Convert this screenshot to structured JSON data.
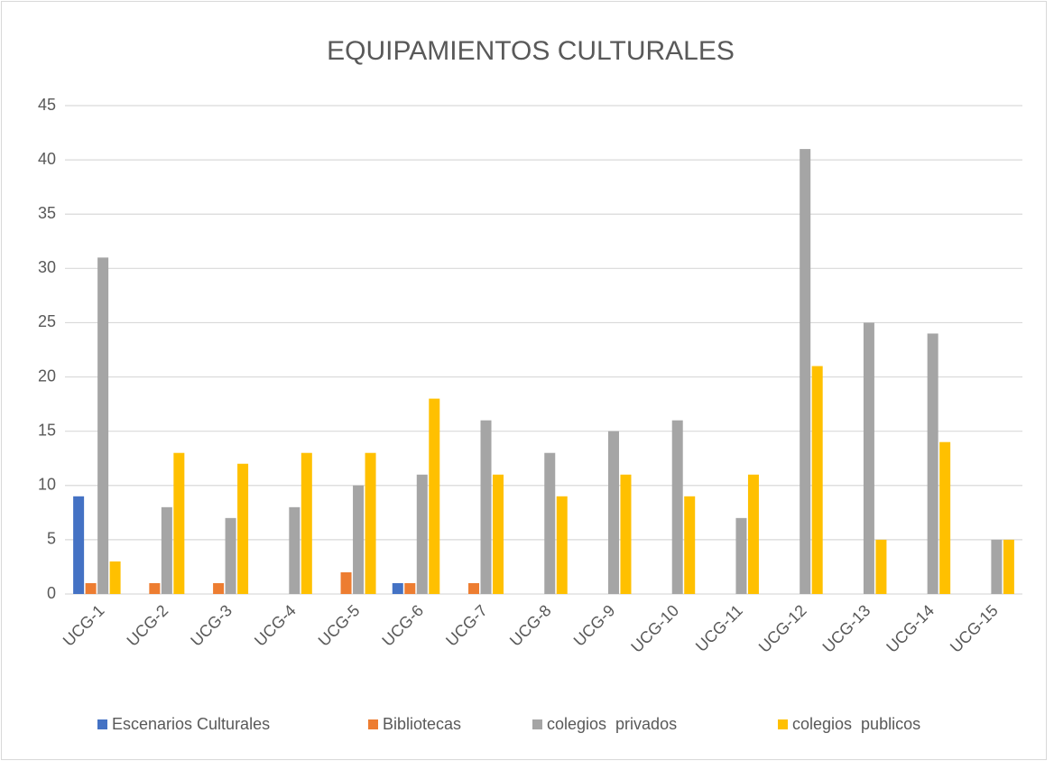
{
  "chart_data": {
    "type": "bar",
    "title": "EQUIPAMIENTOS CULTURALES",
    "categories": [
      "UCG-1",
      "UCG-2",
      "UCG-3",
      "UCG-4",
      "UCG-5",
      "UCG-6",
      "UCG-7",
      "UCG-8",
      "UCG-9",
      "UCG-10",
      "UCG-11",
      "UCG-12",
      "UCG-13",
      "UCG-14",
      "UCG-15"
    ],
    "series": [
      {
        "name": "Escenarios Culturales",
        "color": "#4472c4",
        "values": [
          9,
          0,
          0,
          0,
          0,
          1,
          0,
          0,
          0,
          0,
          0,
          0,
          0,
          0,
          0
        ]
      },
      {
        "name": "Bibliotecas",
        "color": "#ed7d31",
        "values": [
          1,
          1,
          1,
          0,
          2,
          1,
          1,
          0,
          0,
          0,
          0,
          0,
          0,
          0,
          0
        ]
      },
      {
        "name": "colegios  privados",
        "color": "#a5a5a5",
        "values": [
          31,
          8,
          7,
          8,
          10,
          11,
          16,
          13,
          15,
          16,
          7,
          41,
          25,
          24,
          5
        ]
      },
      {
        "name": "colegios  publicos",
        "color": "#ffc000",
        "values": [
          3,
          13,
          12,
          13,
          13,
          18,
          11,
          9,
          11,
          9,
          11,
          21,
          5,
          14,
          5
        ]
      }
    ],
    "ylim": [
      0,
      45
    ],
    "yticks": [
      0,
      5,
      10,
      15,
      20,
      25,
      30,
      35,
      40,
      45
    ],
    "grid": true,
    "legend": "bottom"
  }
}
